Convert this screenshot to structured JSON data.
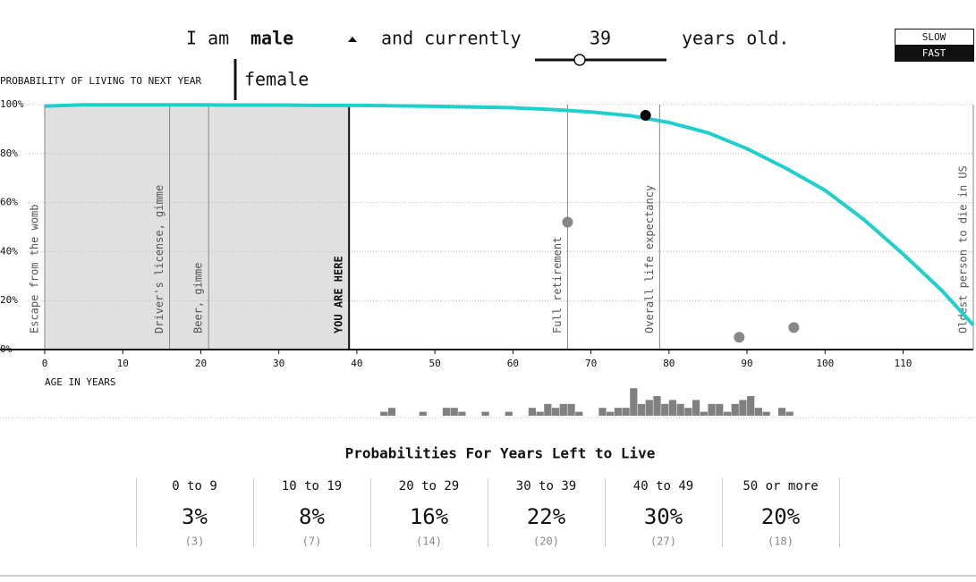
{
  "controls": {
    "prefix": "I am",
    "sex": "male",
    "sex_option": "female",
    "middle": "and currently",
    "age": 39,
    "suffix": "years old.",
    "speeds": [
      "SLOW",
      "FAST"
    ]
  },
  "chart_data": [
    {
      "type": "line",
      "ylabel": "PROBABILITY OF LIVING TO NEXT YEAR",
      "xlabel": "AGE IN YEARS",
      "x": [
        0,
        5,
        10,
        15,
        20,
        25,
        30,
        35,
        40,
        45,
        50,
        55,
        60,
        65,
        70,
        75,
        80,
        85,
        90,
        95,
        100,
        105,
        110,
        115,
        119
      ],
      "values": [
        99.4,
        99.9,
        99.9,
        99.9,
        99.9,
        99.8,
        99.8,
        99.7,
        99.7,
        99.5,
        99.3,
        99.0,
        98.7,
        98.0,
        97.0,
        95.5,
        92.7,
        88.5,
        82,
        74,
        65,
        53,
        39,
        24,
        10
      ],
      "color": "#1fcfcc",
      "xlim": [
        0,
        119
      ],
      "xticks": [
        0,
        10,
        20,
        30,
        40,
        50,
        60,
        70,
        80,
        90,
        100,
        110
      ],
      "ylim": [
        0,
        100
      ],
      "yticks": [
        {
          "value": 0,
          "label": "0%"
        },
        {
          "value": 20,
          "label": "20%"
        },
        {
          "value": 40,
          "label": "40%"
        },
        {
          "value": 60,
          "label": "60%"
        },
        {
          "value": 80,
          "label": "80%"
        },
        {
          "value": 100,
          "label": "100%"
        }
      ],
      "grid": true,
      "annotations": [
        {
          "label": "Escape from the womb",
          "x": 0
        },
        {
          "label": "Driver's license, gimme",
          "x": 16
        },
        {
          "label": "Beer, gimme",
          "x": 21
        },
        {
          "label": "Full retirement",
          "x": 67
        },
        {
          "label": "Overall life expectancy",
          "x": 78.8
        },
        {
          "label": "Oldest person to die in US",
          "x": 119
        }
      ],
      "marker": {
        "label": "YOU ARE HERE"
      },
      "current": {
        "x": 77,
        "value": 95.6,
        "color": "#000000"
      },
      "dots": {
        "x": [
          67,
          89,
          96
        ],
        "values": [
          52,
          5,
          9
        ],
        "color": "#888888"
      }
    },
    {
      "type": "histogram",
      "bins": [
        43,
        44,
        45,
        46,
        47,
        48,
        49,
        50,
        51,
        52,
        53,
        54,
        55,
        56,
        57,
        58,
        59,
        60,
        61,
        62,
        63,
        64,
        65,
        66,
        67,
        68,
        69,
        70,
        71,
        72,
        73,
        74,
        75,
        76,
        77,
        78,
        79,
        80,
        81,
        82,
        83,
        84,
        85,
        86,
        87,
        88,
        89,
        90,
        91,
        92,
        93,
        94,
        95,
        96
      ],
      "values": [
        1,
        2,
        0,
        0,
        0,
        1,
        0,
        0,
        2,
        2,
        1,
        0,
        0,
        1,
        0,
        0,
        1,
        0,
        0,
        2,
        1,
        3,
        2,
        3,
        3,
        1,
        0,
        0,
        2,
        1,
        2,
        2,
        7,
        3,
        4,
        5,
        3,
        4,
        3,
        2,
        4,
        1,
        3,
        3,
        1,
        3,
        4,
        5,
        2,
        1,
        0,
        2,
        1
      ],
      "color": "#808080"
    }
  ],
  "summary": {
    "title": "Probabilities For Years Left to Live",
    "columns": [
      {
        "label": "0 to 9",
        "percent": "3%",
        "count": "(3)"
      },
      {
        "label": "10 to 19",
        "percent": "8%",
        "count": "(7)"
      },
      {
        "label": "20 to 29",
        "percent": "16%",
        "count": "(14)"
      },
      {
        "label": "30 to 39",
        "percent": "22%",
        "count": "(20)"
      },
      {
        "label": "40 to 49",
        "percent": "30%",
        "count": "(27)"
      },
      {
        "label": "50 or more",
        "percent": "20%",
        "count": "(18)"
      }
    ]
  }
}
